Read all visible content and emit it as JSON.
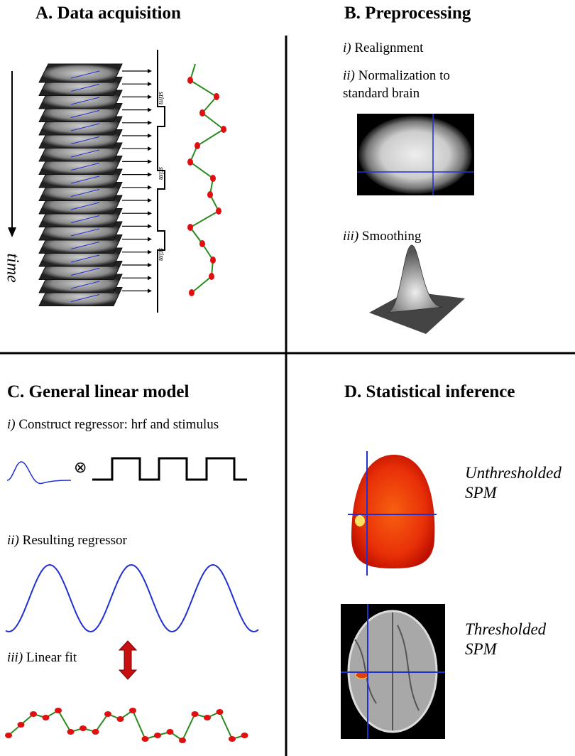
{
  "panels": [
    {
      "title": "A. Data acquisition",
      "axis_label": "time",
      "stim_labels": [
        "stim",
        "stim",
        "stim"
      ]
    },
    {
      "title": "B. Preprocessing",
      "steps": [
        {
          "numeral": "i)",
          "text": "Realignment"
        },
        {
          "numeral": "ii)",
          "text": "Normalization to standard brain"
        },
        {
          "numeral": "iii)",
          "text": "Smoothing"
        }
      ]
    },
    {
      "title": "C. General linear model",
      "operator": "⊗",
      "steps": [
        {
          "numeral": "i)",
          "text": "Construct regressor: hrf and stimulus"
        },
        {
          "numeral": "ii)",
          "text": "Resulting regressor"
        },
        {
          "numeral": "iii)",
          "text": "Linear fit"
        }
      ]
    },
    {
      "title": "D. Statistical inference",
      "captions": [
        "Unthresholded SPM",
        "Thresholded SPM"
      ]
    }
  ]
}
